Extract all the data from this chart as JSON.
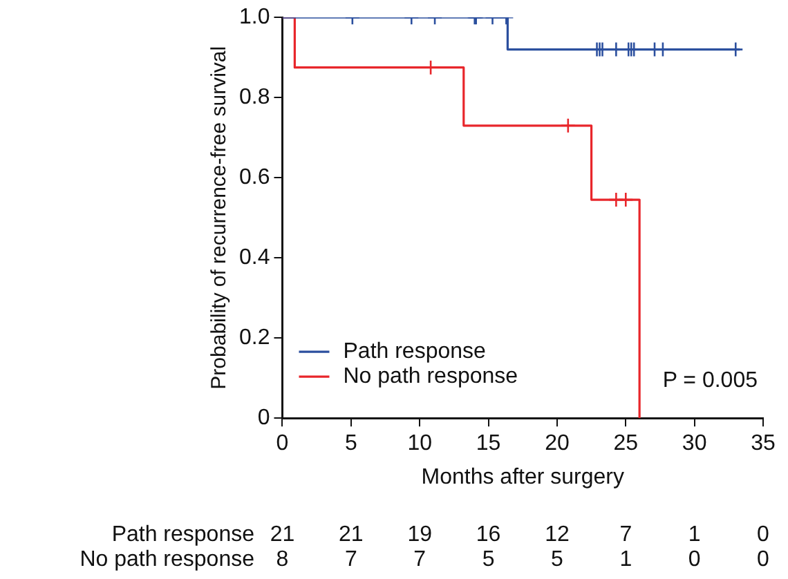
{
  "chart_data": {
    "type": "step",
    "xlabel": "Months after surgery",
    "ylabel": "Probability of recurrence-free survival",
    "xlim": [
      0,
      35
    ],
    "xticks": [
      0,
      5,
      10,
      15,
      20,
      25,
      30,
      35
    ],
    "ylim": [
      0,
      1
    ],
    "yticks": [
      0,
      0.2,
      0.4,
      0.6,
      0.8,
      {
        "value": 1,
        "label": "1.0"
      }
    ],
    "grid": false,
    "legend": "bottom left",
    "series": [
      {
        "name": "Path response",
        "color": "#2b4f9e",
        "x": [
          0,
          16.4,
          33.3
        ],
        "values": [
          1,
          0.92,
          0.92
        ]
      },
      {
        "name": "No path response",
        "color": "#e8262b",
        "x": [
          0,
          0.9,
          13.2,
          22.5,
          26.0
        ],
        "values": [
          1,
          0.875,
          0.73,
          0.545,
          0
        ]
      },
      {
        "type": "scatter",
        "marker": "cross",
        "color": "#2b4f9e",
        "x": [
          5.1,
          9.4,
          11.1,
          14.0,
          14.1,
          15.3,
          16.3,
          22.9,
          23.1,
          23.3,
          24.3,
          25.2,
          25.4,
          25.6,
          27.1,
          27.7,
          33.0
        ],
        "values": [
          1,
          1,
          1,
          1,
          1,
          1,
          1,
          0.92,
          0.92,
          0.92,
          0.92,
          0.92,
          0.92,
          0.92,
          0.92,
          0.92,
          0.92
        ]
      },
      {
        "type": "scatter",
        "marker": "cross",
        "color": "#e8262b",
        "x": [
          10.8,
          20.8,
          24.3,
          25.0
        ],
        "values": [
          0.875,
          0.73,
          0.545,
          0.545
        ]
      }
    ],
    "annotations": [
      "P = 0.005",
      "Path response",
      "21",
      "21",
      "19",
      "16",
      "12",
      "7",
      "1",
      "0",
      "No path response",
      "8",
      "7",
      "7",
      "5",
      "5",
      "1",
      "0",
      "0"
    ]
  }
}
